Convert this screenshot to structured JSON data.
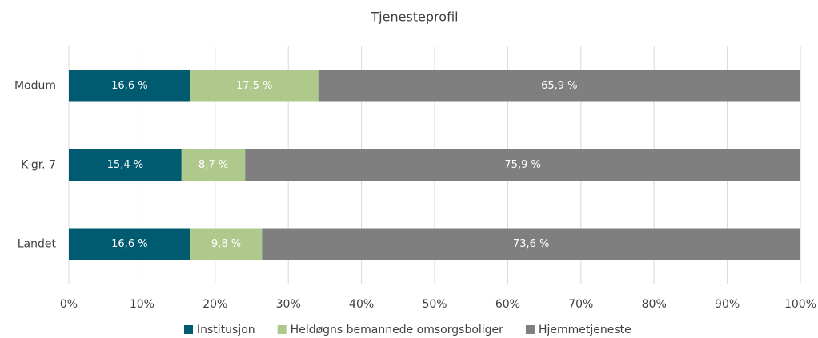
{
  "chart_data": {
    "type": "bar",
    "orientation": "horizontal",
    "stacked": true,
    "title": "Tjenesteprofil",
    "categories": [
      "Modum",
      "K-gr. 7",
      "Landet"
    ],
    "series": [
      {
        "name": "Institusjon",
        "color": "#005a70",
        "values": [
          16.6,
          15.4,
          16.6
        ],
        "value_labels": [
          "16,6 %",
          "15,4 %",
          "16,6 %"
        ]
      },
      {
        "name": "Heldøgns bemannede omsorgsboliger",
        "color": "#afc98c",
        "values": [
          17.5,
          8.7,
          9.8
        ],
        "value_labels": [
          "17,5 %",
          "8,7 %",
          "9,8 %"
        ]
      },
      {
        "name": "Hjemmetjeneste",
        "color": "#7f7f80",
        "values": [
          65.9,
          75.9,
          73.6
        ],
        "value_labels": [
          "65,9 %",
          "75,9 %",
          "73,6 %"
        ]
      }
    ],
    "xlim": [
      0,
      100
    ],
    "xticks": [
      {
        "value": 0,
        "label": "0%"
      },
      {
        "value": 10,
        "label": "10%"
      },
      {
        "value": 20,
        "label": "20%"
      },
      {
        "value": 30,
        "label": "30%"
      },
      {
        "value": 40,
        "label": "40%"
      },
      {
        "value": 50,
        "label": "50%"
      },
      {
        "value": 60,
        "label": "60%"
      },
      {
        "value": 70,
        "label": "70%"
      },
      {
        "value": 80,
        "label": "80%"
      },
      {
        "value": 90,
        "label": "90%"
      },
      {
        "value": 100,
        "label": "100%"
      }
    ],
    "grid": true,
    "legend": "bottom"
  }
}
